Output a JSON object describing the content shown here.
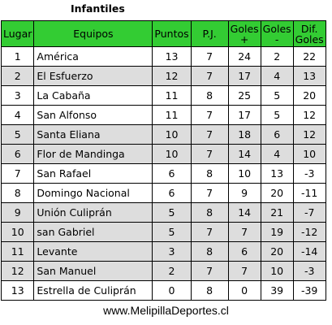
{
  "title": "Infantiles",
  "headers": {
    "pos": "Lugar",
    "team": "Equipos",
    "pts": "Puntos",
    "pj": "P.J.",
    "gf_1": "Goles",
    "gf_2": "+",
    "gc_1": "Goles",
    "gc_2": "-",
    "dif_1": "Dif.",
    "dif_2": "Goles"
  },
  "rows": [
    {
      "pos": "1",
      "team": "América",
      "pts": "13",
      "pj": "7",
      "gf": "24",
      "gc": "2",
      "dif": "22"
    },
    {
      "pos": "2",
      "team": "El Esfuerzo",
      "pts": "12",
      "pj": "7",
      "gf": "17",
      "gc": "4",
      "dif": "13"
    },
    {
      "pos": "3",
      "team": "La Cabaña",
      "pts": "11",
      "pj": "8",
      "gf": "25",
      "gc": "5",
      "dif": "20"
    },
    {
      "pos": "4",
      "team": "San Alfonso",
      "pts": "11",
      "pj": "7",
      "gf": "17",
      "gc": "5",
      "dif": "12"
    },
    {
      "pos": "5",
      "team": "Santa Eliana",
      "pts": "10",
      "pj": "7",
      "gf": "18",
      "gc": "6",
      "dif": "12"
    },
    {
      "pos": "6",
      "team": "Flor de Mandinga",
      "pts": "10",
      "pj": "7",
      "gf": "14",
      "gc": "4",
      "dif": "10"
    },
    {
      "pos": "7",
      "team": "San Rafael",
      "pts": "6",
      "pj": "8",
      "gf": "10",
      "gc": "13",
      "dif": "-3"
    },
    {
      "pos": "8",
      "team": "Domingo Nacional",
      "pts": "6",
      "pj": "7",
      "gf": "9",
      "gc": "20",
      "dif": "-11"
    },
    {
      "pos": "9",
      "team": "Unión Culiprán",
      "pts": "5",
      "pj": "8",
      "gf": "14",
      "gc": "21",
      "dif": "-7"
    },
    {
      "pos": "10",
      "team": "san Gabriel",
      "pts": "5",
      "pj": "7",
      "gf": "7",
      "gc": "19",
      "dif": "-12"
    },
    {
      "pos": "11",
      "team": "Levante",
      "pts": "3",
      "pj": "8",
      "gf": "6",
      "gc": "20",
      "dif": "-14"
    },
    {
      "pos": "12",
      "team": "San Manuel",
      "pts": "2",
      "pj": "7",
      "gf": "7",
      "gc": "10",
      "dif": "-3"
    },
    {
      "pos": "13",
      "team": "Estrella de Culiprán",
      "pts": "0",
      "pj": "8",
      "gf": "0",
      "gc": "39",
      "dif": "-39"
    }
  ],
  "footer": "www.MelipillaDeportes.cl",
  "colors": {
    "header_bg": "#33cc33",
    "alt_row_bg": "#dddddd",
    "row_bg": "#ffffff",
    "border": "#000000"
  }
}
